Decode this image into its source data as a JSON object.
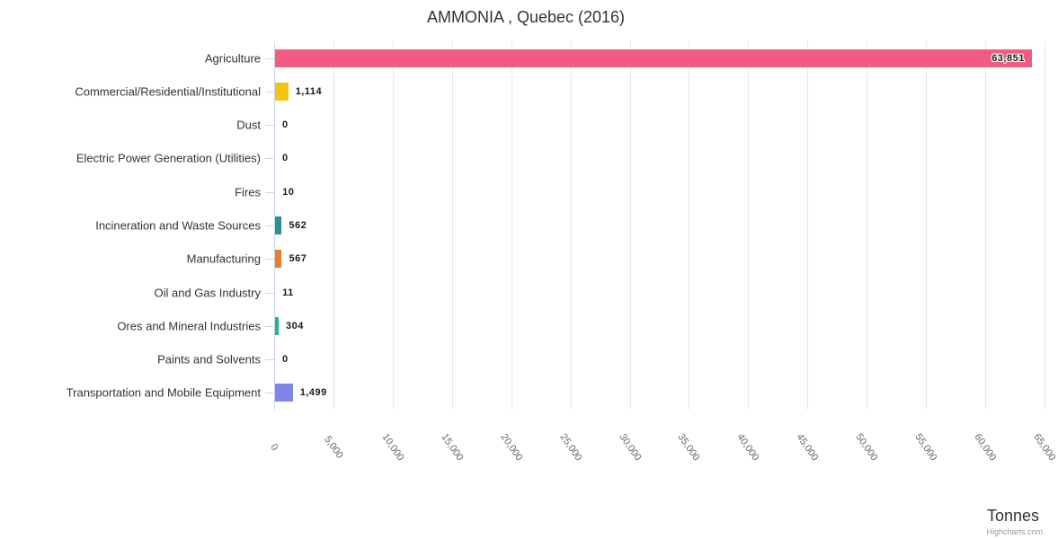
{
  "title": "AMMONIA , Quebec (2016)",
  "credit": "Highcharts.com",
  "chart_data": {
    "type": "bar",
    "orientation": "horizontal",
    "title": "AMMONIA , Quebec (2016)",
    "xlabel": "Tonnes",
    "grid": true,
    "axis_range": [
      0,
      65000
    ],
    "axis_ticks": [
      "0",
      "5,000",
      "10,000",
      "15,000",
      "20,000",
      "25,000",
      "30,000",
      "35,000",
      "40,000",
      "45,000",
      "50,000",
      "55,000",
      "60,000",
      "65,000"
    ],
    "categories": [
      "Agriculture",
      "Commercial/Residential/Institutional",
      "Dust",
      "Electric Power Generation (Utilities)",
      "Fires",
      "Incineration and Waste Sources",
      "Manufacturing",
      "Oil and Gas Industry",
      "Ores and Mineral Industries",
      "Paints and Solvents",
      "Transportation and Mobile Equipment"
    ],
    "values": [
      63851,
      1114,
      0,
      0,
      10,
      562,
      567,
      11,
      304,
      0,
      1499
    ],
    "value_labels": [
      "63,851",
      "1,114",
      "0",
      "0",
      "10",
      "562",
      "567",
      "11",
      "304",
      "0",
      "1,499"
    ],
    "bar_colors": [
      "#f15c80",
      "#f0c613",
      null,
      null,
      null,
      "#2d8e8f",
      "#e87e2d",
      null,
      "#23b28e",
      null,
      "#8085e9"
    ]
  },
  "style": {
    "grid_color": "#e6e6e6",
    "axis_line_color": "#ccd6eb",
    "label_color": "#333333",
    "tick_label_color": "#666666"
  }
}
